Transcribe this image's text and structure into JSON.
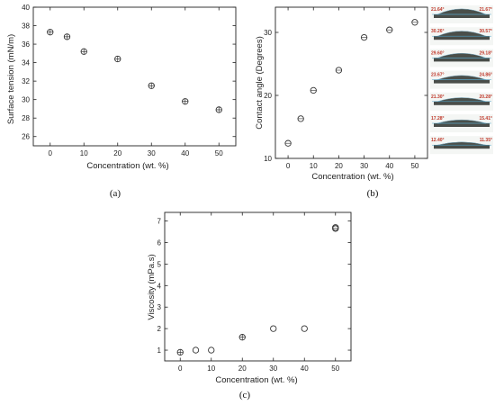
{
  "colors": {
    "axis": "#222222",
    "marker": "#333333",
    "angle_label": "#c0392b",
    "drop": "#4a4f4a",
    "substrate": "#2a2f2a"
  },
  "chart_data": [
    {
      "type": "scatter",
      "panel": "(a)",
      "xlabel": "Concentration (wt. %)",
      "ylabel": "Surface tension (mN/m)",
      "xlim": [
        -5,
        55
      ],
      "ylim": [
        25,
        40
      ],
      "xticks": [
        "0",
        "10",
        "20",
        "30",
        "40",
        "50"
      ],
      "yticks": [
        "26",
        "28",
        "30",
        "32",
        "34",
        "36",
        "38",
        "40"
      ],
      "x": [
        0,
        5,
        10,
        20,
        30,
        40,
        50
      ],
      "y": [
        37.3,
        36.8,
        35.2,
        34.4,
        31.5,
        29.8,
        28.9
      ],
      "marker": "circle-plus"
    },
    {
      "type": "scatter",
      "panel": "(b)",
      "xlabel": "Concentration (wt. %)",
      "ylabel": "Contact angle (Degrees)",
      "xlim": [
        -5,
        55
      ],
      "ylim": [
        10,
        34
      ],
      "xticks": [
        "0",
        "10",
        "20",
        "30",
        "40",
        "50"
      ],
      "yticks": [
        "10",
        "20",
        "30"
      ],
      "x": [
        0,
        5,
        10,
        20,
        30,
        40,
        50
      ],
      "y": [
        12.4,
        16.3,
        20.8,
        24.0,
        29.2,
        30.4,
        31.6
      ],
      "marker": "circle-dot",
      "drop_images": [
        {
          "left": "21.64°",
          "right": "21.67°"
        },
        {
          "left": "30.26°",
          "right": "30.57°"
        },
        {
          "left": "29.60°",
          "right": "29.18°"
        },
        {
          "left": "23.67°",
          "right": "24.86°"
        },
        {
          "left": "21.30°",
          "right": "20.28°"
        },
        {
          "left": "17.28°",
          "right": "15.41°"
        },
        {
          "left": "12.40°",
          "right": "11.35°"
        }
      ]
    },
    {
      "type": "scatter",
      "panel": "(c)",
      "xlabel": "Concentration (wt. %)",
      "ylabel": "Viscosity (mPa.s)",
      "xlim": [
        -5,
        55
      ],
      "ylim": [
        0.5,
        7.4
      ],
      "xticks": [
        "0",
        "10",
        "20",
        "30",
        "40",
        "50"
      ],
      "yticks": [
        "1",
        "2",
        "3",
        "4",
        "5",
        "6",
        "7"
      ],
      "x": [
        0,
        5,
        10,
        20,
        30,
        40,
        50
      ],
      "y": [
        0.9,
        1.0,
        1.0,
        1.6,
        2.0,
        2.0,
        6.7
      ],
      "markers": [
        "circle-plus",
        "circle",
        "circle",
        "circle-plus",
        "circle",
        "circle",
        "circle-double"
      ]
    }
  ]
}
